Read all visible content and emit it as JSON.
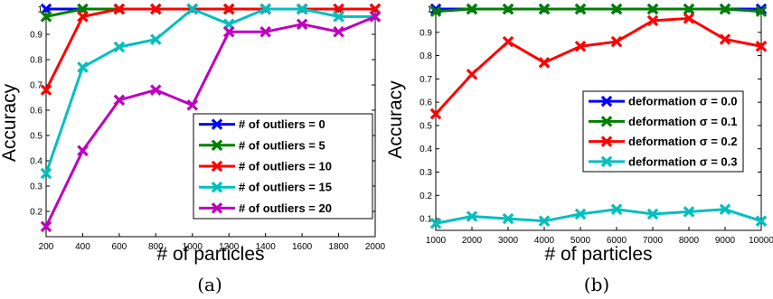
{
  "chart_data": [
    {
      "type": "line",
      "xlabel": "# of particles",
      "ylabel": "Accuracy",
      "caption": "(a)",
      "xlim": [
        200,
        2000
      ],
      "ylim": [
        0.1,
        1.0
      ],
      "xticks": [
        "200",
        "400",
        "600",
        "800",
        "1000",
        "1200",
        "1400",
        "1600",
        "1800",
        "2000"
      ],
      "yticks": [
        "0.2",
        "0.3",
        "0.4",
        "0.5",
        "0.6",
        "0.7",
        "0.8",
        "0.9",
        "1"
      ],
      "grid": false,
      "legend_position": "lower-right",
      "x": [
        200,
        400,
        600,
        800,
        1000,
        1200,
        1400,
        1600,
        1800,
        2000
      ],
      "series": [
        {
          "name": "# of outliers = 0",
          "color": "#0000ff",
          "values": [
            1.0,
            1.0,
            1.0,
            1.0,
            1.0,
            1.0,
            1.0,
            1.0,
            1.0,
            1.0
          ]
        },
        {
          "name": "# of outliers = 5",
          "color": "#008000",
          "values": [
            0.97,
            1.0,
            1.0,
            1.0,
            1.0,
            1.0,
            1.0,
            1.0,
            1.0,
            1.0
          ]
        },
        {
          "name": "# of outliers = 10",
          "color": "#ff0000",
          "values": [
            0.68,
            0.97,
            1.0,
            1.0,
            1.0,
            1.0,
            1.0,
            1.0,
            1.0,
            1.0
          ]
        },
        {
          "name": "# of outliers = 15",
          "color": "#00bfbf",
          "values": [
            0.35,
            0.77,
            0.85,
            0.88,
            1.0,
            0.94,
            1.0,
            1.0,
            0.97,
            0.97
          ]
        },
        {
          "name": "# of outliers = 20",
          "color": "#bf00bf",
          "values": [
            0.14,
            0.44,
            0.64,
            0.68,
            0.62,
            0.91,
            0.91,
            0.94,
            0.91,
            0.97
          ]
        }
      ]
    },
    {
      "type": "line",
      "xlabel": "# of particles",
      "ylabel": "Accuracy",
      "caption": "(b)",
      "xlim": [
        1000,
        10000
      ],
      "ylim": [
        0.05,
        1.0
      ],
      "xticks": [
        "1000",
        "2000",
        "3000",
        "4000",
        "5000",
        "6000",
        "7000",
        "8000",
        "9000",
        "10000"
      ],
      "yticks": [
        "0.1",
        "0.2",
        "0.3",
        "0.4",
        "0.5",
        "0.6",
        "0.7",
        "0.8",
        "0.9",
        "1"
      ],
      "grid": false,
      "legend_position": "center-right",
      "x": [
        1000,
        2000,
        3000,
        4000,
        5000,
        6000,
        7000,
        8000,
        9000,
        10000
      ],
      "series": [
        {
          "name": "deformation σ = 0.0",
          "color": "#0000ff",
          "values": [
            1.0,
            1.0,
            1.0,
            1.0,
            1.0,
            1.0,
            1.0,
            1.0,
            1.0,
            1.0
          ]
        },
        {
          "name": "deformation σ = 0.1",
          "color": "#008000",
          "values": [
            0.99,
            1.0,
            1.0,
            1.0,
            1.0,
            1.0,
            1.0,
            1.0,
            1.0,
            0.99
          ]
        },
        {
          "name": "deformation σ = 0.2",
          "color": "#ff0000",
          "values": [
            0.55,
            0.72,
            0.86,
            0.77,
            0.84,
            0.86,
            0.95,
            0.96,
            0.87,
            0.84
          ]
        },
        {
          "name": "deformation σ = 0.3",
          "color": "#00bfbf",
          "values": [
            0.08,
            0.11,
            0.1,
            0.09,
            0.12,
            0.14,
            0.12,
            0.13,
            0.14,
            0.09
          ]
        }
      ]
    }
  ]
}
